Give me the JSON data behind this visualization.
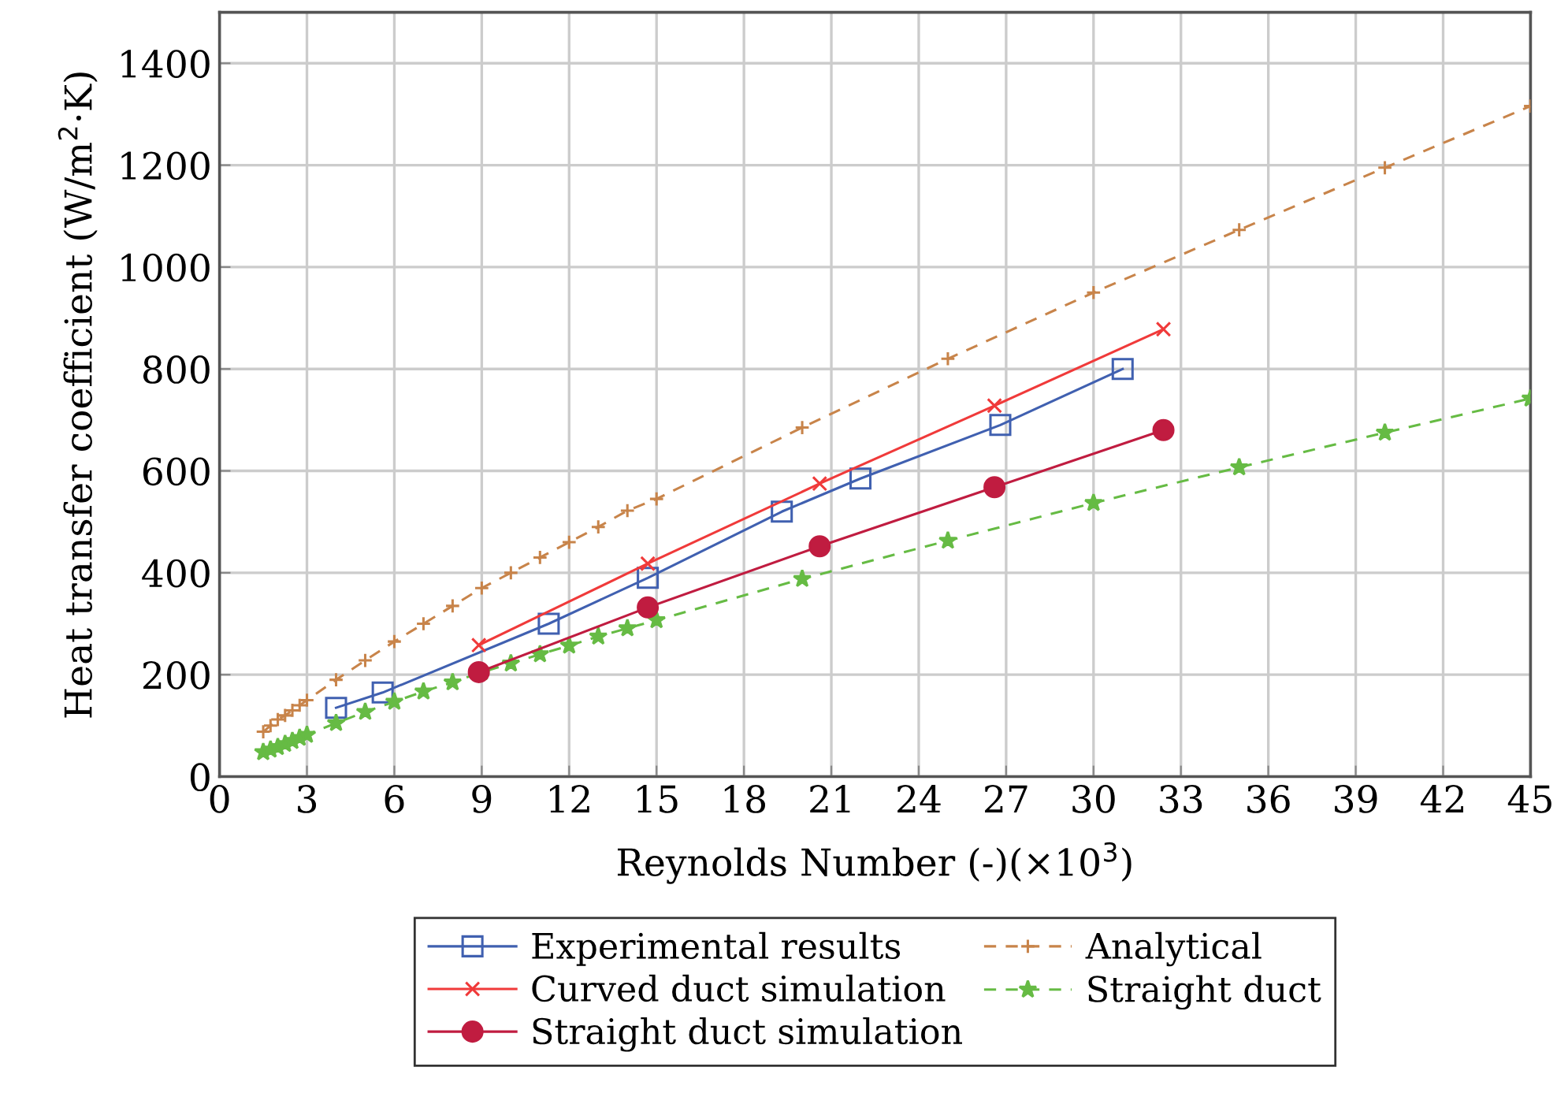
{
  "chart_data": {
    "type": "line",
    "xlabel": "Reynolds Number (-)(×10$^{3}$)",
    "ylabel": "Heat transfer coefficient (W/m$^{2}$·K)",
    "xlim": [
      0,
      45
    ],
    "ylim": [
      0,
      1500
    ],
    "xticks": [
      0,
      3,
      6,
      9,
      12,
      15,
      18,
      21,
      24,
      27,
      30,
      33,
      36,
      39,
      42,
      45
    ],
    "yticks": [
      0,
      200,
      400,
      600,
      800,
      1000,
      1200,
      1400
    ],
    "grid": true,
    "legend": "bottom",
    "series": [
      {
        "name": "Experimental results",
        "color": "#4060b0",
        "marker": "square",
        "line_style": "solid",
        "x": [
          4,
          5.6,
          11.3,
          14.7,
          19.3,
          22,
          26.8,
          31
        ],
        "values": [
          135,
          165,
          300,
          390,
          520,
          585,
          690,
          800
        ]
      },
      {
        "name": "Analytical",
        "color": "#c8844a",
        "marker": "plus",
        "line_style": "dashed",
        "x": [
          1.5,
          1.75,
          2,
          2.25,
          2.5,
          2.75,
          3,
          4,
          5,
          6,
          7,
          8,
          9,
          10,
          11,
          12,
          13,
          14,
          15,
          20,
          25,
          30,
          35,
          40,
          45
        ],
        "values": [
          88,
          100,
          112,
          120,
          130,
          140,
          150,
          190,
          228,
          265,
          300,
          335,
          370,
          400,
          430,
          460,
          490,
          522,
          545,
          685,
          820,
          950,
          1073,
          1195,
          1316
        ]
      },
      {
        "name": "Curved duct simulation",
        "color": "#f03a3a",
        "marker": "cross",
        "line_style": "solid",
        "x": [
          8.9,
          14.7,
          20.6,
          26.6,
          32.4
        ],
        "values": [
          258,
          418,
          575,
          728,
          878
        ]
      },
      {
        "name": "Straight duct",
        "color": "#66bb44",
        "marker": "star",
        "line_style": "dashed",
        "x": [
          1.5,
          1.75,
          2,
          2.25,
          2.5,
          2.75,
          3,
          4,
          5,
          6,
          7,
          8,
          9,
          10,
          11,
          12,
          13,
          14,
          15,
          20,
          25,
          30,
          35,
          40,
          45
        ],
        "values": [
          48,
          53,
          58,
          64,
          70,
          76,
          82,
          105,
          127,
          147,
          167,
          185,
          205,
          222,
          240,
          257,
          275,
          291,
          307,
          388,
          463,
          537,
          607,
          675,
          742
        ]
      },
      {
        "name": "Straight duct simulation",
        "color": "#c01c40",
        "marker": "circle",
        "line_style": "solid",
        "x": [
          8.9,
          14.7,
          20.6,
          26.6,
          32.4
        ],
        "values": [
          205,
          332,
          452,
          568,
          680
        ]
      }
    ]
  }
}
